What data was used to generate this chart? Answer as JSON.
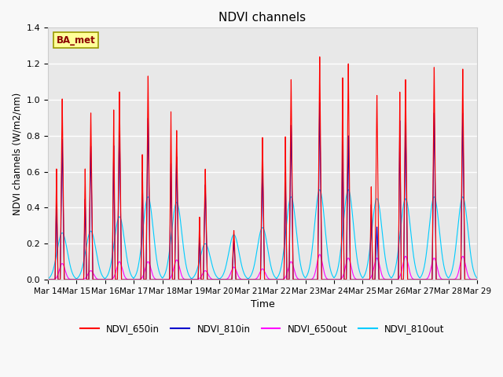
{
  "title": "NDVI channels",
  "xlabel": "Time",
  "ylabel": "NDVI channels (W/m2/nm)",
  "ylim": [
    0,
    1.4
  ],
  "annotation_text": "BA_met",
  "legend_labels": [
    "NDVI_650in",
    "NDVI_810in",
    "NDVI_650out",
    "NDVI_810out"
  ],
  "line_colors": [
    "#ff0000",
    "#0000cc",
    "#ff00ff",
    "#00ccff"
  ],
  "background_color": "#e8e8e8",
  "grid_color": "#ffffff",
  "x_tick_labels": [
    "Mar 14",
    "Mar 15",
    "Mar 16",
    "Mar 17",
    "Mar 18",
    "Mar 19",
    "Mar 20",
    "Mar 21",
    "Mar 22",
    "Mar 23",
    "Mar 24",
    "Mar 25",
    "Mar 26",
    "Mar 27",
    "Mar 28",
    "Mar 29"
  ],
  "days": 15,
  "points_per_day": 288,
  "day_peaks_650in": [
    1.03,
    0.95,
    1.07,
    1.16,
    0.85,
    0.63,
    0.28,
    0.81,
    1.14,
    1.27,
    1.23,
    1.05,
    1.14,
    1.21,
    1.2
  ],
  "day_peaks_810in": [
    0.8,
    0.76,
    0.88,
    0.92,
    0.7,
    0.54,
    0.22,
    0.65,
    0.88,
    1.01,
    0.82,
    0.3,
    0.9,
    0.95,
    0.95
  ],
  "day_peaks_650out": [
    0.09,
    0.05,
    0.1,
    0.1,
    0.11,
    0.05,
    0.07,
    0.06,
    0.1,
    0.14,
    0.12,
    0.12,
    0.13,
    0.12,
    0.13
  ],
  "day_peaks_810out": [
    0.26,
    0.27,
    0.35,
    0.46,
    0.43,
    0.2,
    0.25,
    0.29,
    0.46,
    0.5,
    0.5,
    0.45,
    0.45,
    0.46,
    0.46
  ],
  "secondary_peaks_650in": [
    0.62,
    0.62,
    0.95,
    0.7,
    0.94,
    0.35,
    0.0,
    0.0,
    0.8,
    0.0,
    1.13,
    0.52,
    1.05,
    0.0,
    0.0
  ],
  "secondary_peaks_810in": [
    0.45,
    0.45,
    0.75,
    0.6,
    0.65,
    0.25,
    0.0,
    0.0,
    0.6,
    0.0,
    0.78,
    0.42,
    0.89,
    0.0,
    0.0
  ]
}
